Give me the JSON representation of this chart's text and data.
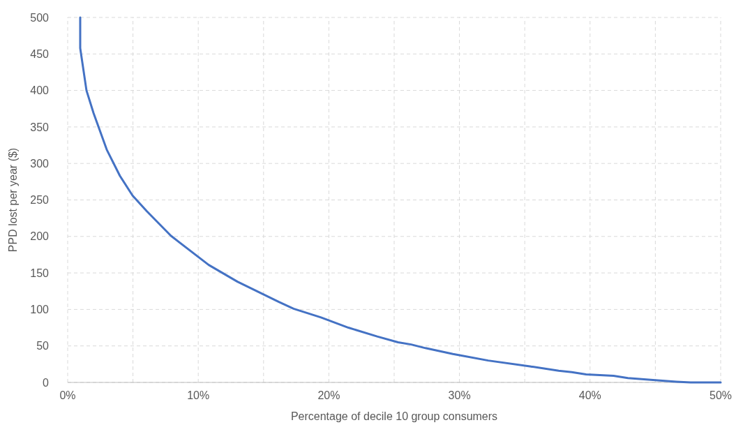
{
  "chart_data": {
    "type": "line",
    "xlabel": "Percentage of decile 10 group consumers",
    "ylabel": "PPD lost per year ($)",
    "x": [
      0.96,
      0.96,
      1.44,
      1.98,
      2.99,
      4.0,
      4.97,
      6.04,
      7.9,
      10.8,
      13.0,
      16.2,
      17.3,
      19.4,
      21.5,
      23.7,
      25.3,
      26.3,
      27.4,
      29.5,
      32.2,
      35.4,
      37.6,
      38.6,
      39.7,
      41.8,
      42.9,
      45.0,
      46.6,
      47.7,
      50
    ],
    "series": [
      {
        "color": "#4472c4",
        "values": [
          500,
          458,
          400,
          369,
          319,
          283,
          256,
          235,
          201,
          161,
          138,
          110,
          101,
          89,
          75,
          63,
          55,
          52,
          47,
          39,
          30,
          22,
          16,
          14,
          11,
          9,
          6,
          3,
          1,
          0,
          0
        ]
      }
    ],
    "xlim": [
      0,
      50
    ],
    "xticks": [
      {
        "value": 0,
        "label": "0%"
      },
      {
        "value": 5,
        "label": null
      },
      {
        "value": 10,
        "label": "10%"
      },
      {
        "value": 15,
        "label": null
      },
      {
        "value": 20,
        "label": "20%"
      },
      {
        "value": 25,
        "label": null
      },
      {
        "value": 30,
        "label": "30%"
      },
      {
        "value": 35,
        "label": null
      },
      {
        "value": 40,
        "label": "40%"
      },
      {
        "value": 45,
        "label": null
      },
      {
        "value": 50,
        "label": "50%"
      }
    ],
    "ylim": [
      0,
      500
    ],
    "yticks": [
      0,
      50,
      100,
      150,
      200,
      250,
      300,
      350,
      400,
      450,
      500
    ],
    "grid": true,
    "marker": "none",
    "line_style": "solid"
  }
}
